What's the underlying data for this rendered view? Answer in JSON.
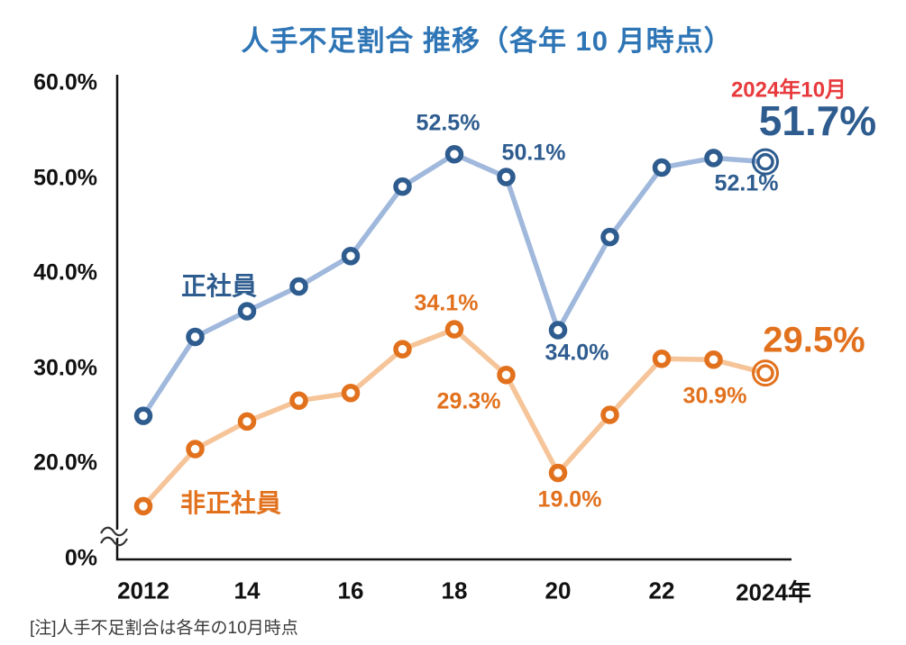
{
  "title": "人手不足割合  推移（各年 10 月時点）",
  "note": "[注]人手不足割合は各年の10月時点",
  "colors": {
    "title_blue": "#2e75b6",
    "regular_marker": "#2e5c8f",
    "regular_line": "#9fb8dc",
    "nonregular_marker": "#e2711d",
    "nonregular_line": "#f6c499",
    "highlight_red": "#e83a3d",
    "axis_black": "#111111",
    "note_gray": "#3a3a3a"
  },
  "chart_data": {
    "type": "line",
    "title": "人手不足割合 推移（各年10月時点）",
    "x": [
      2012,
      2013,
      2014,
      2015,
      2016,
      2017,
      2018,
      2019,
      2020,
      2021,
      2022,
      2023,
      2024
    ],
    "x_ticks": [
      {
        "label": "2012",
        "year": 2012
      },
      {
        "label": "14",
        "year": 2014
      },
      {
        "label": "16",
        "year": 2016
      },
      {
        "label": "18",
        "year": 2018
      },
      {
        "label": "20",
        "year": 2020
      },
      {
        "label": "22",
        "year": 2022
      },
      {
        "label": "2024年",
        "year": 2024
      }
    ],
    "y_ticks": [
      {
        "label": "60.0%",
        "value": 60
      },
      {
        "label": "50.0%",
        "value": 50
      },
      {
        "label": "40.0%",
        "value": 40
      },
      {
        "label": "30.0%",
        "value": 30
      },
      {
        "label": "20.0%",
        "value": 20
      },
      {
        "label": "0%",
        "value": 0
      }
    ],
    "ylim": [
      0,
      60
    ],
    "axis_break_between": [
      0,
      20
    ],
    "grid": false,
    "series": [
      {
        "name": "正社員",
        "marker_color": "#2e5c8f",
        "line_color": "#9fb8dc",
        "values": [
          25.0,
          33.3,
          36.0,
          38.6,
          41.8,
          49.1,
          52.5,
          50.1,
          34.0,
          43.8,
          51.1,
          52.1,
          51.7
        ]
      },
      {
        "name": "非正社員",
        "marker_color": "#e2711d",
        "line_color": "#f6c499",
        "values": [
          15.5,
          21.5,
          24.4,
          26.6,
          27.4,
          32.0,
          34.1,
          29.3,
          19.0,
          25.1,
          31.0,
          30.9,
          29.5
        ]
      }
    ],
    "annotations": {
      "latest_label": "2024年10月",
      "seishain_2018": "52.5%",
      "seishain_2019": "50.1%",
      "seishain_2020": "34.0%",
      "seishain_2023": "52.1%",
      "seishain_2024": "51.7%",
      "hiseishain_2018": "34.1%",
      "hiseishain_2019": "29.3%",
      "hiseishain_2020": "19.0%",
      "hiseishain_2023": "30.9%",
      "hiseishain_2024": "29.5%"
    }
  }
}
